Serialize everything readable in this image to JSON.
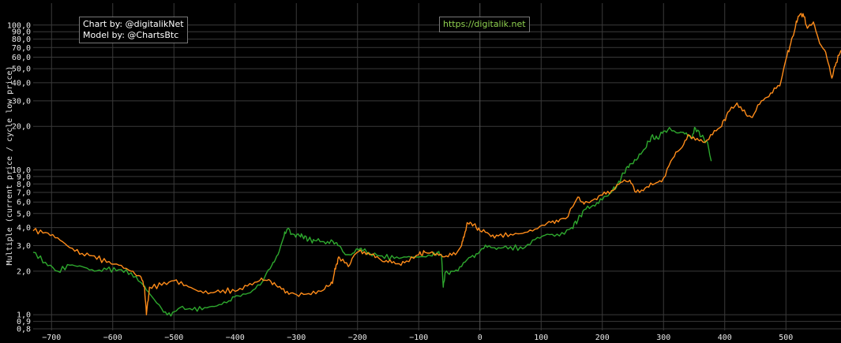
{
  "annotations": {
    "credit_line1": "Chart by: @digitalikNet",
    "credit_line2": "Model by: @ChartsBtc",
    "url": "https://digitalik.net",
    "url_color": "#8fd14f"
  },
  "chart_data": {
    "type": "line",
    "title": "",
    "xlabel": "",
    "ylabel": "Multiple (current price / cycle low price)",
    "y_scale": "log",
    "xlim": [
      -730,
      590
    ],
    "ylim": [
      0.78,
      125
    ],
    "grid": true,
    "background": "#000000",
    "x_ticks": [
      -700,
      -600,
      -500,
      -400,
      -300,
      -200,
      -100,
      0,
      100,
      200,
      300,
      400,
      500
    ],
    "y_ticks": [
      {
        "value": 0.8,
        "label": "0,8"
      },
      {
        "value": 0.9,
        "label": "0,9"
      },
      {
        "value": 1.0,
        "label": "1,0"
      },
      {
        "value": 2.0,
        "label": "2,0"
      },
      {
        "value": 3.0,
        "label": "3,0"
      },
      {
        "value": 4.0,
        "label": "4,0"
      },
      {
        "value": 5.0,
        "label": "5,0"
      },
      {
        "value": 6.0,
        "label": "6,0"
      },
      {
        "value": 7.0,
        "label": "7,0"
      },
      {
        "value": 8.0,
        "label": "8,0"
      },
      {
        "value": 9.0,
        "label": "9,0"
      },
      {
        "value": 10.0,
        "label": "10,0"
      },
      {
        "value": 20.0,
        "label": "20,0"
      },
      {
        "value": 30.0,
        "label": "30,0"
      },
      {
        "value": 40.0,
        "label": "40,0"
      },
      {
        "value": 50.0,
        "label": "50,0"
      },
      {
        "value": 60.0,
        "label": "60,0"
      },
      {
        "value": 70.0,
        "label": "70,0"
      },
      {
        "value": 80.0,
        "label": "80,0"
      },
      {
        "value": 90.0,
        "label": "90,0"
      },
      {
        "value": 100.0,
        "label": "100,0"
      }
    ],
    "series": [
      {
        "color": "#2ea82e",
        "points": [
          [
            -730,
            2.7
          ],
          [
            -710,
            2.3
          ],
          [
            -690,
            2.0
          ],
          [
            -670,
            2.2
          ],
          [
            -650,
            2.15
          ],
          [
            -630,
            2.0
          ],
          [
            -610,
            2.05
          ],
          [
            -590,
            2.05
          ],
          [
            -570,
            1.95
          ],
          [
            -550,
            1.6
          ],
          [
            -540,
            1.4
          ],
          [
            -520,
            1.1
          ],
          [
            -505,
            0.98
          ],
          [
            -490,
            1.12
          ],
          [
            -470,
            1.08
          ],
          [
            -450,
            1.12
          ],
          [
            -430,
            1.15
          ],
          [
            -410,
            1.25
          ],
          [
            -395,
            1.35
          ],
          [
            -375,
            1.42
          ],
          [
            -355,
            1.7
          ],
          [
            -340,
            2.2
          ],
          [
            -330,
            2.6
          ],
          [
            -320,
            3.5
          ],
          [
            -315,
            3.9
          ],
          [
            -305,
            3.6
          ],
          [
            -295,
            3.5
          ],
          [
            -290,
            3.5
          ],
          [
            -280,
            3.3
          ],
          [
            -270,
            3.25
          ],
          [
            -255,
            3.2
          ],
          [
            -240,
            3.2
          ],
          [
            -230,
            3.0
          ],
          [
            -220,
            2.6
          ],
          [
            -210,
            2.6
          ],
          [
            -200,
            2.85
          ],
          [
            -190,
            2.8
          ],
          [
            -180,
            2.65
          ],
          [
            -160,
            2.55
          ],
          [
            -140,
            2.45
          ],
          [
            -120,
            2.5
          ],
          [
            -100,
            2.5
          ],
          [
            -80,
            2.55
          ],
          [
            -70,
            2.7
          ],
          [
            -63,
            2.6
          ],
          [
            -60,
            1.55
          ],
          [
            -57,
            1.95
          ],
          [
            -45,
            2.0
          ],
          [
            -30,
            2.15
          ],
          [
            -15,
            2.5
          ],
          [
            0,
            2.75
          ],
          [
            15,
            3.0
          ],
          [
            30,
            2.9
          ],
          [
            50,
            2.95
          ],
          [
            70,
            2.85
          ],
          [
            90,
            3.3
          ],
          [
            110,
            3.6
          ],
          [
            130,
            3.5
          ],
          [
            150,
            4.0
          ],
          [
            160,
            4.5
          ],
          [
            170,
            5.3
          ],
          [
            185,
            5.7
          ],
          [
            200,
            6.2
          ],
          [
            215,
            7.0
          ],
          [
            225,
            8.0
          ],
          [
            235,
            9.5
          ],
          [
            245,
            11.0
          ],
          [
            258,
            12.0
          ],
          [
            270,
            14.0
          ],
          [
            280,
            17.0
          ],
          [
            290,
            16.5
          ],
          [
            300,
            18.5
          ],
          [
            312,
            19.0
          ],
          [
            322,
            18.0
          ],
          [
            332,
            18.2
          ],
          [
            345,
            16.5
          ],
          [
            352,
            19.5
          ],
          [
            362,
            17.0
          ],
          [
            372,
            15.5
          ],
          [
            378,
            11.5
          ]
        ]
      },
      {
        "color": "#ff8c1a",
        "points": [
          [
            -730,
            3.8
          ],
          [
            -710,
            3.7
          ],
          [
            -690,
            3.4
          ],
          [
            -670,
            2.9
          ],
          [
            -650,
            2.65
          ],
          [
            -630,
            2.55
          ],
          [
            -610,
            2.3
          ],
          [
            -590,
            2.2
          ],
          [
            -570,
            2.0
          ],
          [
            -555,
            1.85
          ],
          [
            -548,
            1.55
          ],
          [
            -545,
            1.0
          ],
          [
            -540,
            1.55
          ],
          [
            -520,
            1.6
          ],
          [
            -500,
            1.72
          ],
          [
            -480,
            1.6
          ],
          [
            -460,
            1.45
          ],
          [
            -440,
            1.42
          ],
          [
            -420,
            1.48
          ],
          [
            -400,
            1.45
          ],
          [
            -380,
            1.58
          ],
          [
            -360,
            1.72
          ],
          [
            -345,
            1.75
          ],
          [
            -330,
            1.55
          ],
          [
            -315,
            1.45
          ],
          [
            -300,
            1.38
          ],
          [
            -280,
            1.4
          ],
          [
            -260,
            1.45
          ],
          [
            -245,
            1.6
          ],
          [
            -240,
            1.75
          ],
          [
            -235,
            2.2
          ],
          [
            -230,
            2.5
          ],
          [
            -215,
            2.15
          ],
          [
            -205,
            2.6
          ],
          [
            -195,
            2.8
          ],
          [
            -180,
            2.6
          ],
          [
            -165,
            2.45
          ],
          [
            -150,
            2.3
          ],
          [
            -135,
            2.25
          ],
          [
            -120,
            2.35
          ],
          [
            -100,
            2.6
          ],
          [
            -90,
            2.7
          ],
          [
            -70,
            2.65
          ],
          [
            -55,
            2.55
          ],
          [
            -40,
            2.6
          ],
          [
            -30,
            3.0
          ],
          [
            -25,
            3.6
          ],
          [
            -20,
            4.3
          ],
          [
            -10,
            4.2
          ],
          [
            0,
            3.8
          ],
          [
            15,
            3.6
          ],
          [
            30,
            3.5
          ],
          [
            50,
            3.6
          ],
          [
            70,
            3.65
          ],
          [
            90,
            3.9
          ],
          [
            110,
            4.3
          ],
          [
            125,
            4.5
          ],
          [
            140,
            4.6
          ],
          [
            160,
            6.5
          ],
          [
            170,
            5.8
          ],
          [
            185,
            6.2
          ],
          [
            200,
            6.7
          ],
          [
            215,
            7.2
          ],
          [
            230,
            8.2
          ],
          [
            245,
            8.5
          ],
          [
            255,
            7.0
          ],
          [
            270,
            7.5
          ],
          [
            285,
            8.0
          ],
          [
            300,
            8.8
          ],
          [
            315,
            12.0
          ],
          [
            328,
            14.0
          ],
          [
            340,
            17.5
          ],
          [
            355,
            16.5
          ],
          [
            365,
            15.5
          ],
          [
            380,
            17.5
          ],
          [
            395,
            20.0
          ],
          [
            405,
            25.0
          ],
          [
            420,
            29.0
          ],
          [
            435,
            24.0
          ],
          [
            445,
            23.0
          ],
          [
            460,
            30.0
          ],
          [
            475,
            34.0
          ],
          [
            490,
            38.0
          ],
          [
            500,
            58.0
          ],
          [
            508,
            75.0
          ],
          [
            515,
            95.0
          ],
          [
            520,
            115.0
          ],
          [
            528,
            120.0
          ],
          [
            535,
            95.0
          ],
          [
            545,
            105.0
          ],
          [
            555,
            75.0
          ],
          [
            565,
            65.0
          ],
          [
            575,
            43.0
          ],
          [
            582,
            55.0
          ],
          [
            590,
            67.0
          ]
        ]
      }
    ]
  }
}
